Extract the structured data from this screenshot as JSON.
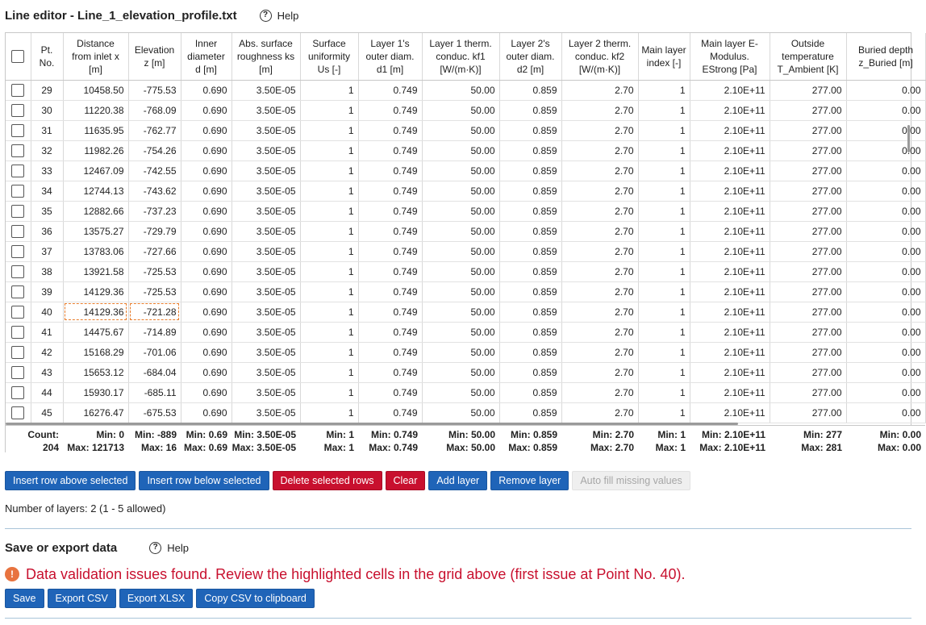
{
  "editor": {
    "title": "Line editor - Line_1_elevation_profile.txt",
    "help_label": "Help"
  },
  "columns": [
    {
      "key": "pt",
      "label": "Pt. No."
    },
    {
      "key": "x",
      "label": "Distance from inlet x [m]"
    },
    {
      "key": "z",
      "label": "Elevation z [m]"
    },
    {
      "key": "d",
      "label": "Inner diameter d [m]"
    },
    {
      "key": "ks",
      "label": "Abs. surface roughness ks [m]"
    },
    {
      "key": "us",
      "label": "Surface uniformity Us [-]"
    },
    {
      "key": "d1",
      "label": "Layer 1's outer diam. d1 [m]"
    },
    {
      "key": "kf1",
      "label": "Layer 1 therm. conduc. kf1 [W/(m·K)]"
    },
    {
      "key": "d2",
      "label": "Layer 2's outer diam. d2 [m]"
    },
    {
      "key": "kf2",
      "label": "Layer 2 therm. conduc. kf2 [W/(m·K)]"
    },
    {
      "key": "ml",
      "label": "Main layer index [-]"
    },
    {
      "key": "e",
      "label": "Main layer E-Modulus. EStrong [Pa]"
    },
    {
      "key": "t",
      "label": "Outside temperature T_Ambient [K]"
    },
    {
      "key": "zb",
      "label": "Buried depth z_Buried [m]"
    }
  ],
  "rows": [
    [
      "29",
      "10458.50",
      "-775.53",
      "0.690",
      "3.50E-05",
      "1",
      "0.749",
      "50.00",
      "0.859",
      "2.70",
      "1",
      "2.10E+11",
      "277.00",
      "0.00"
    ],
    [
      "30",
      "11220.38",
      "-768.09",
      "0.690",
      "3.50E-05",
      "1",
      "0.749",
      "50.00",
      "0.859",
      "2.70",
      "1",
      "2.10E+11",
      "277.00",
      "0.00"
    ],
    [
      "31",
      "11635.95",
      "-762.77",
      "0.690",
      "3.50E-05",
      "1",
      "0.749",
      "50.00",
      "0.859",
      "2.70",
      "1",
      "2.10E+11",
      "277.00",
      "0.00"
    ],
    [
      "32",
      "11982.26",
      "-754.26",
      "0.690",
      "3.50E-05",
      "1",
      "0.749",
      "50.00",
      "0.859",
      "2.70",
      "1",
      "2.10E+11",
      "277.00",
      "0.00"
    ],
    [
      "33",
      "12467.09",
      "-742.55",
      "0.690",
      "3.50E-05",
      "1",
      "0.749",
      "50.00",
      "0.859",
      "2.70",
      "1",
      "2.10E+11",
      "277.00",
      "0.00"
    ],
    [
      "34",
      "12744.13",
      "-743.62",
      "0.690",
      "3.50E-05",
      "1",
      "0.749",
      "50.00",
      "0.859",
      "2.70",
      "1",
      "2.10E+11",
      "277.00",
      "0.00"
    ],
    [
      "35",
      "12882.66",
      "-737.23",
      "0.690",
      "3.50E-05",
      "1",
      "0.749",
      "50.00",
      "0.859",
      "2.70",
      "1",
      "2.10E+11",
      "277.00",
      "0.00"
    ],
    [
      "36",
      "13575.27",
      "-729.79",
      "0.690",
      "3.50E-05",
      "1",
      "0.749",
      "50.00",
      "0.859",
      "2.70",
      "1",
      "2.10E+11",
      "277.00",
      "0.00"
    ],
    [
      "37",
      "13783.06",
      "-727.66",
      "0.690",
      "3.50E-05",
      "1",
      "0.749",
      "50.00",
      "0.859",
      "2.70",
      "1",
      "2.10E+11",
      "277.00",
      "0.00"
    ],
    [
      "38",
      "13921.58",
      "-725.53",
      "0.690",
      "3.50E-05",
      "1",
      "0.749",
      "50.00",
      "0.859",
      "2.70",
      "1",
      "2.10E+11",
      "277.00",
      "0.00"
    ],
    [
      "39",
      "14129.36",
      "-725.53",
      "0.690",
      "3.50E-05",
      "1",
      "0.749",
      "50.00",
      "0.859",
      "2.70",
      "1",
      "2.10E+11",
      "277.00",
      "0.00"
    ],
    [
      "40",
      "14129.36",
      "-721.28",
      "0.690",
      "3.50E-05",
      "1",
      "0.749",
      "50.00",
      "0.859",
      "2.70",
      "1",
      "2.10E+11",
      "277.00",
      "0.00"
    ],
    [
      "41",
      "14475.67",
      "-714.89",
      "0.690",
      "3.50E-05",
      "1",
      "0.749",
      "50.00",
      "0.859",
      "2.70",
      "1",
      "2.10E+11",
      "277.00",
      "0.00"
    ],
    [
      "42",
      "15168.29",
      "-701.06",
      "0.690",
      "3.50E-05",
      "1",
      "0.749",
      "50.00",
      "0.859",
      "2.70",
      "1",
      "2.10E+11",
      "277.00",
      "0.00"
    ],
    [
      "43",
      "15653.12",
      "-684.04",
      "0.690",
      "3.50E-05",
      "1",
      "0.749",
      "50.00",
      "0.859",
      "2.70",
      "1",
      "2.10E+11",
      "277.00",
      "0.00"
    ],
    [
      "44",
      "15930.17",
      "-685.11",
      "0.690",
      "3.50E-05",
      "1",
      "0.749",
      "50.00",
      "0.859",
      "2.70",
      "1",
      "2.10E+11",
      "277.00",
      "0.00"
    ],
    [
      "45",
      "16276.47",
      "-675.53",
      "0.690",
      "3.50E-05",
      "1",
      "0.749",
      "50.00",
      "0.859",
      "2.70",
      "1",
      "2.10E+11",
      "277.00",
      "0.00"
    ]
  ],
  "flagged_row_pt": "40",
  "flagged_cols": [
    1,
    2
  ],
  "summary": [
    {
      "line1": "Count:",
      "line2": "204"
    },
    {
      "line1": "Min: 0",
      "line2": "Max: 121713"
    },
    {
      "line1": "Min: -889",
      "line2": "Max: 16"
    },
    {
      "line1": "Min: 0.69",
      "line2": "Max: 0.69"
    },
    {
      "line1": "Min: 3.50E-05",
      "line2": "Max: 3.50E-05"
    },
    {
      "line1": "Min: 1",
      "line2": "Max: 1"
    },
    {
      "line1": "Min: 0.749",
      "line2": "Max: 0.749"
    },
    {
      "line1": "Min: 50.00",
      "line2": "Max: 50.00"
    },
    {
      "line1": "Min: 0.859",
      "line2": "Max: 0.859"
    },
    {
      "line1": "Min: 2.70",
      "line2": "Max: 2.70"
    },
    {
      "line1": "Min: 1",
      "line2": "Max: 1"
    },
    {
      "line1": "Min: 2.10E+11",
      "line2": "Max: 2.10E+11"
    },
    {
      "line1": "Min: 277",
      "line2": "Max: 281"
    },
    {
      "line1": "Min: 0.00",
      "line2": "Max: 0.00"
    }
  ],
  "toolbar": {
    "insert_above": "Insert row above selected",
    "insert_below": "Insert row below selected",
    "delete_rows": "Delete selected rows",
    "clear": "Clear",
    "add_layer": "Add layer",
    "remove_layer": "Remove layer",
    "auto_fill": "Auto fill missing values"
  },
  "layers_info": "Number of layers: 2 (1 - 5 allowed)",
  "save": {
    "title": "Save or export data",
    "help_label": "Help",
    "alert": "Data validation issues found. Review the highlighted cells in the grid above (first issue at Point No. 40).",
    "buttons": {
      "save": "Save",
      "export_csv": "Export CSV",
      "export_xlsx": "Export XLSX",
      "copy_csv": "Copy CSV to clipboard"
    }
  },
  "colors": {
    "primary": "#1f64b8",
    "danger": "#c8102e",
    "warning_icon": "#e8733f",
    "flag_outline": "#e87d2c"
  },
  "icons": {
    "help": "question-circle-icon",
    "alert": "exclamation-circle-icon"
  }
}
